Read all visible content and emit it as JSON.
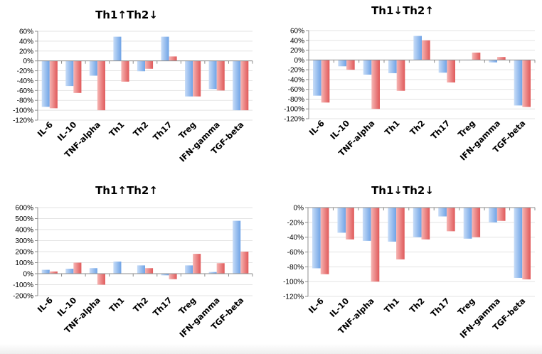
{
  "colors": {
    "blue_light": "#c7dcf7",
    "blue_dark": "#6fa3e6",
    "red_light": "#f6b5b3",
    "red_dark": "#e0595a",
    "axis": "#8c8c8c",
    "grid": "#e3e3e3"
  },
  "chart_data": [
    {
      "type": "bar",
      "title": "Th1↑Th2↓",
      "categories": [
        "IL-6",
        "IL-10",
        "TNF-alpha",
        "Th1",
        "Th2",
        "Th17",
        "Treg",
        "IFN-gamma",
        "TGF-beta"
      ],
      "series": [
        {
          "values": [
            -93,
            -51,
            -30,
            49,
            -21,
            49,
            -72,
            -57,
            -100
          ]
        },
        {
          "values": [
            -96,
            -65,
            -100,
            -42,
            -16,
            9,
            -72,
            -60,
            -100
          ]
        }
      ],
      "ylim": [
        -120,
        60
      ],
      "yticks": [
        60,
        40,
        20,
        0,
        -20,
        -40,
        -60,
        -80,
        -100,
        -120
      ],
      "ytick_labels": [
        "60%",
        "40%",
        "20%",
        "0%",
        "-20%",
        "-40%",
        "-60%",
        "-80%",
        "-100%",
        "-120%"
      ],
      "xlabel": "",
      "ylabel": ""
    },
    {
      "type": "bar",
      "title": "Th1↓Th2↑",
      "categories": [
        "IL-6",
        "IL-10",
        "TNF-alpha",
        "Th1",
        "Th2",
        "Th17",
        "Treg",
        "IFN-gamma",
        "TGF-beta"
      ],
      "series": [
        {
          "values": [
            -73,
            -13,
            -30,
            -27,
            49,
            -26,
            0,
            -5,
            -93
          ]
        },
        {
          "values": [
            -87,
            -20,
            -100,
            -63,
            40,
            -46,
            15,
            6,
            -96
          ]
        }
      ],
      "ylim": [
        -120,
        60
      ],
      "yticks": [
        60,
        40,
        20,
        0,
        -20,
        -40,
        -60,
        -80,
        -100,
        -120
      ],
      "ytick_labels": [
        "60%",
        "40%",
        "20%",
        "0%",
        "-20%",
        "-40%",
        "-60%",
        "-80%",
        "-100%",
        "-120%"
      ],
      "xlabel": "",
      "ylabel": ""
    },
    {
      "type": "bar",
      "title": "Th1↑Th2↑",
      "categories": [
        "IL-6",
        "IL-10",
        "TNF-alpha",
        "Th1",
        "Th2",
        "Th17",
        "Treg",
        "IFN-gamma",
        "TGF-beta"
      ],
      "series": [
        {
          "values": [
            35,
            45,
            50,
            110,
            75,
            -15,
            75,
            15,
            480
          ]
        },
        {
          "values": [
            20,
            100,
            -100,
            0,
            50,
            -50,
            180,
            95,
            200
          ]
        }
      ],
      "ylim": [
        -200,
        600
      ],
      "yticks": [
        600,
        500,
        400,
        300,
        200,
        100,
        0,
        -100,
        -200
      ],
      "ytick_labels": [
        "600%",
        "500%",
        "400%",
        "300%",
        "200%",
        "100%",
        "0%",
        "-100%",
        "-200%"
      ],
      "xlabel": "",
      "ylabel": ""
    },
    {
      "type": "bar",
      "title": "Th1↓Th2↓",
      "categories": [
        "IL-6",
        "IL-10",
        "TNF-alpha",
        "Th1",
        "Th2",
        "Th17",
        "Treg",
        "IFN-gamma",
        "TGF-beta"
      ],
      "series": [
        {
          "values": [
            -82,
            -34,
            -45,
            -46,
            -40,
            -12,
            -42,
            -20,
            -95
          ]
        },
        {
          "values": [
            -90,
            -43,
            -100,
            -70,
            -43,
            -32,
            -40,
            -18,
            -97
          ]
        }
      ],
      "ylim": [
        -120,
        0
      ],
      "yticks": [
        0,
        -20,
        -40,
        -60,
        -80,
        -100,
        -120
      ],
      "ytick_labels": [
        "0%",
        "-20%",
        "-40%",
        "-60%",
        "-80%",
        "-100%",
        "-120%"
      ],
      "xlabel": "",
      "ylabel": ""
    }
  ]
}
